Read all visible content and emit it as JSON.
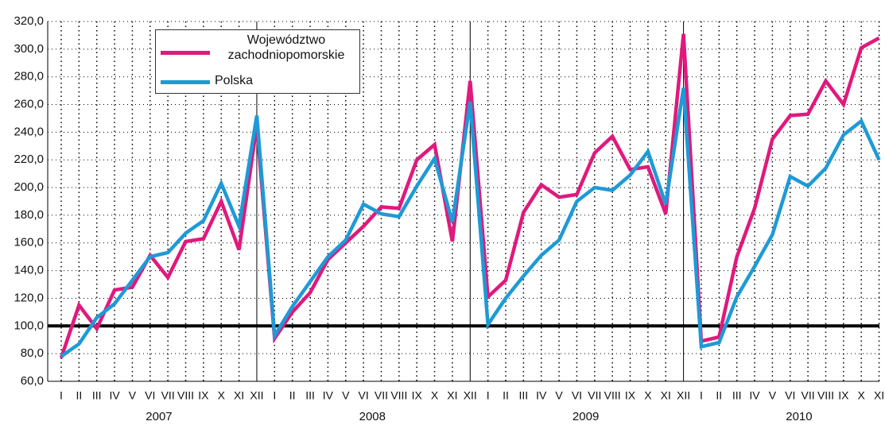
{
  "chart_data": {
    "type": "line",
    "categories": [
      "I",
      "II",
      "III",
      "IV",
      "V",
      "VI",
      "VII",
      "VIII",
      "IX",
      "X",
      "XI",
      "XII",
      "I",
      "II",
      "III",
      "IV",
      "V",
      "VI",
      "VII",
      "VIII",
      "IX",
      "X",
      "XI",
      "XII",
      "I",
      "II",
      "III",
      "IV",
      "V",
      "VI",
      "VII",
      "VIII",
      "IX",
      "X",
      "XI",
      "XII",
      "I",
      "II",
      "III",
      "IV",
      "V",
      "VI",
      "VII",
      "VIII",
      "IX",
      "X",
      "XI"
    ],
    "year_labels": [
      "2007",
      "2008",
      "2009",
      "2010"
    ],
    "series": [
      {
        "name": "Województwo zachodniopomorskie",
        "color": "#e0197d",
        "values": [
          77,
          115,
          98,
          126,
          128,
          151,
          135,
          161,
          163,
          190,
          155,
          245,
          91,
          110,
          124,
          148,
          160,
          172,
          186,
          185,
          220,
          231,
          161,
          277,
          121,
          133,
          182,
          202,
          193,
          195,
          225,
          237,
          213,
          215,
          181,
          311,
          89,
          92,
          150,
          185,
          235,
          252,
          253,
          277,
          260,
          301,
          308
        ]
      },
      {
        "name": "Polska",
        "color": "#1e9ad6",
        "values": [
          78,
          87,
          106,
          116,
          133,
          150,
          153,
          167,
          176,
          203,
          172,
          252,
          93,
          114,
          132,
          150,
          162,
          188,
          181,
          179,
          201,
          221,
          175,
          262,
          101,
          120,
          136,
          151,
          162,
          190,
          200,
          198,
          209,
          226,
          188,
          272,
          85,
          88,
          121,
          143,
          166,
          208,
          201,
          214,
          238,
          248,
          220
        ]
      }
    ],
    "ylim": [
      60,
      320
    ],
    "yticks": [
      {
        "value": 60,
        "label": "60,0"
      },
      {
        "value": 80,
        "label": "80,0"
      },
      {
        "value": 100,
        "label": "100,0"
      },
      {
        "value": 120,
        "label": "120,0"
      },
      {
        "value": 140,
        "label": "140,0"
      },
      {
        "value": 160,
        "label": "160,0"
      },
      {
        "value": 180,
        "label": "180,0"
      },
      {
        "value": 200,
        "label": "200,0"
      },
      {
        "value": 220,
        "label": "220,0"
      },
      {
        "value": 240,
        "label": "240,0"
      },
      {
        "value": 260,
        "label": "260,0"
      },
      {
        "value": 280,
        "label": "280,0"
      },
      {
        "value": 300,
        "label": "300,0"
      },
      {
        "value": 320,
        "label": "320,0"
      }
    ],
    "reference_line": 100,
    "grid": true
  }
}
